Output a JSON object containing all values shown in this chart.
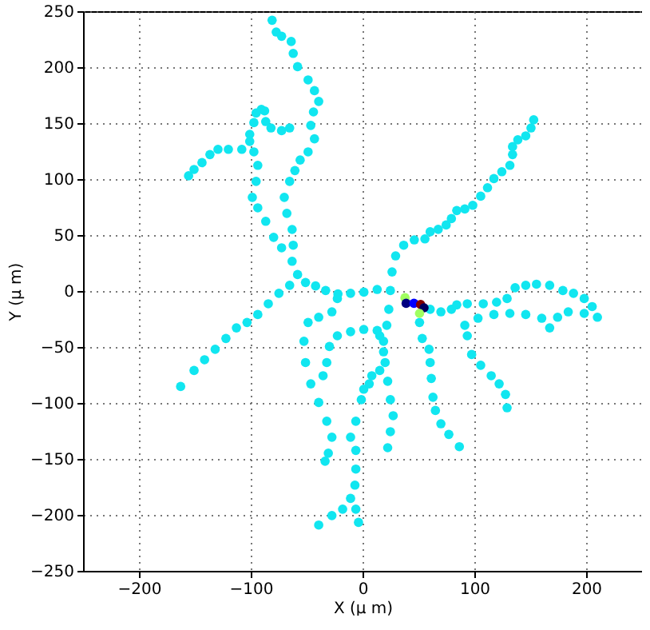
{
  "chart_data": {
    "type": "scatter",
    "xlabel": "X (μ m)",
    "ylabel": "Y (μ m)",
    "xlim": [
      -250,
      250
    ],
    "ylim": [
      -250,
      250
    ],
    "xticks": [
      -200,
      -100,
      0,
      100,
      200
    ],
    "yticks": [
      -250,
      -200,
      -150,
      -100,
      -50,
      0,
      50,
      100,
      150,
      200,
      250
    ],
    "grid": true,
    "marker": "circle",
    "series": [
      {
        "color": "#11e6f0",
        "x": [
          -80.9,
          -77.2,
          -72.4,
          -63.8,
          -62,
          -58.1,
          -48.7,
          -43,
          -39.2,
          -43.9,
          -46.3,
          -43,
          -48.7,
          -55.8,
          -60.5,
          -65.2,
          -70,
          -67.7,
          -63,
          -62,
          -63,
          -58.1,
          -51,
          -72.4,
          -79.5,
          -86.6,
          -93.7,
          -98.6,
          -95.2,
          -93.7,
          -97.2,
          -100.9,
          -100.9,
          -97.2,
          -95.2,
          -90.5,
          -87.6,
          -86.6,
          -81.9,
          -72.4,
          -65.2,
          -108,
          -120,
          -129.3,
          -136.5,
          -143.6,
          -150.7,
          -155.6,
          -42,
          -33,
          -22,
          -10.7,
          1.2,
          13.1,
          24.9,
          26.4,
          29.6,
          36.8,
          46.3,
          55.8,
          60.5,
          67.7,
          74.8,
          79.5,
          84.3,
          91.5,
          98.6,
          105.7,
          111.8,
          117.5,
          124.6,
          131.8,
          134.2,
          134.2,
          138.9,
          146,
          150.7,
          153.1,
          60.5,
          70.1,
          79.5,
          84.3,
          93.7,
          108,
          119.9,
          129.3,
          136.5,
          146,
          155.6,
          167.4,
          179.2,
          188.7,
          198.3,
          205.4,
          210.1,
          91.5,
          103.3,
          117.5,
          131.8,
          146,
          160.3,
          167.4,
          174.5,
          184,
          198.3,
          93.7,
          97.6,
          105.7,
          115.1,
          122.2,
          127.9,
          129.3,
          51,
          53.4,
          59.5,
          60.5,
          61.5,
          63,
          65.2,
          70.1,
          77.2,
          86.6,
          23.5,
          21.7,
          18.8,
          20.2,
          22.5,
          24.9,
          27.4,
          24.9,
          22.5,
          8.3,
          1.1,
          -65.2,
          -74.8,
          -84.3,
          -93.7,
          -103.3,
          -112.8,
          -122.2,
          -131.8,
          -141.3,
          -150.7,
          -162.7,
          -22.5,
          -27.4,
          -39.2,
          -48.7,
          -52.4,
          -51,
          -46.3,
          -39.2,
          -32,
          -27.4,
          -30.6,
          -33.5,
          13.1,
          1.1,
          -10.7,
          -22.5,
          -29.6,
          -32,
          -35.3,
          15.4,
          6,
          -1.1,
          -6,
          -10.7,
          -6,
          -6,
          -6.8,
          -10.7,
          -6,
          -3.6,
          -17.8,
          -27.4,
          -39.2,
          15.4,
          18.8
        ],
        "values": [
          241.9,
          231.4,
          227.6,
          222.9,
          212.3,
          200.4,
          188.6,
          179,
          169.4,
          160,
          148,
          136,
          124.3,
          117,
          107.6,
          98,
          83.7,
          69.4,
          55,
          40.9,
          26.6,
          14.7,
          7.6,
          38.6,
          48,
          62.3,
          74.3,
          83.7,
          98,
          112.3,
          124.3,
          133.7,
          140,
          150.4,
          159,
          162.3,
          160.9,
          151.4,
          145.7,
          143.3,
          145.7,
          126.6,
          126.6,
          126.6,
          121.9,
          114.7,
          108.6,
          102.9,
          4.5,
          0.5,
          -2.5,
          -2,
          -1,
          1.4,
          0.4,
          17.1,
          31.4,
          40.9,
          45.7,
          46.6,
          52.9,
          55.1,
          59,
          64.7,
          71.9,
          73.3,
          76.6,
          84.7,
          92.3,
          100.4,
          106.6,
          112.3,
          121.9,
          129,
          135.1,
          138.6,
          145.7,
          152.9,
          -16.3,
          -18.6,
          -16.3,
          -12.4,
          -11.4,
          -11.4,
          -10,
          -6.7,
          2.9,
          5.1,
          6.1,
          5.1,
          0.4,
          -2,
          -6.7,
          -13.9,
          -23.4,
          -30.6,
          -24.3,
          -21,
          -20,
          -21,
          -24.3,
          -32.9,
          -23.4,
          -18.6,
          -20,
          -40,
          -56.7,
          -66.3,
          -75.7,
          -82.9,
          -92.4,
          -104.3,
          -28.1,
          -42.4,
          -52,
          -63.9,
          -78.1,
          -94.9,
          -106.7,
          -118.6,
          -128.1,
          -139.1,
          -16.3,
          -30.6,
          -44.9,
          -63.9,
          -80.6,
          -97.1,
          -111.4,
          -125.7,
          -140,
          -75.7,
          -87.7,
          5.1,
          -2,
          -11.4,
          -21,
          -28.1,
          -32.9,
          -42.4,
          -52,
          -61.4,
          -71,
          -85.3,
          -6.7,
          -18.6,
          -23.4,
          -28.1,
          -44.9,
          -63.9,
          -82.9,
          -99.6,
          -116.3,
          -130.6,
          -144.9,
          -152,
          -35.3,
          -34.3,
          -36.3,
          -40,
          -49.6,
          -63.9,
          -75.7,
          -71,
          -82.9,
          -97.1,
          -116.3,
          -130.6,
          -142.4,
          -159.1,
          -173.4,
          -185.3,
          -194.9,
          -206.7,
          -194.9,
          -200.6,
          -209.1,
          -40,
          -54.3
        ]
      },
      {
        "colors": [
          "#a0ff60",
          "#000080",
          "#0000ff",
          "#800000",
          "#000060",
          "#a0ff60"
        ],
        "x": [
          38,
          39,
          46,
          52,
          55,
          51
        ],
        "values": [
          -6,
          -11,
          -11,
          -12,
          -15,
          -20
        ]
      }
    ]
  }
}
